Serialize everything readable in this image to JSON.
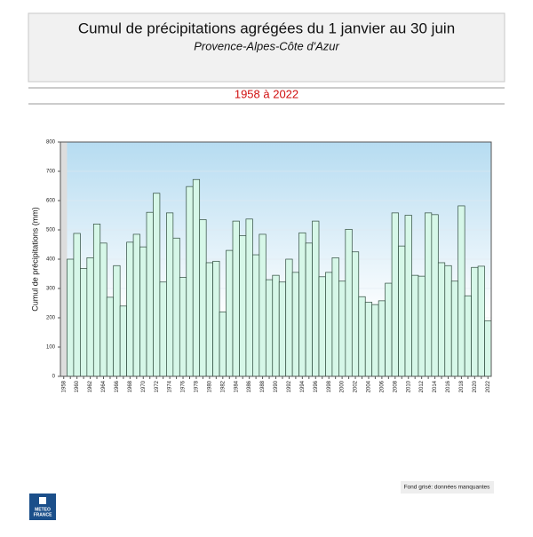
{
  "chart_data": {
    "type": "bar",
    "title": "Cumul de précipitations agrégées du 1 janvier au 30 juin",
    "subtitle": "Provence-Alpes-Côte d'Azur",
    "period": "1958 à 2022",
    "y_label": "Cumul de précipitations (mm)",
    "note": "Fond grisé: données manquantes",
    "logo": [
      "METEO",
      "FRANCE"
    ],
    "categories": [
      "1958",
      null,
      "1960",
      null,
      "1962",
      null,
      "1964",
      null,
      "1966",
      null,
      "1968",
      null,
      "1970",
      null,
      "1972",
      null,
      "1974",
      null,
      "1976",
      null,
      "1978",
      null,
      "1980",
      null,
      "1982",
      null,
      "1984",
      null,
      "1986",
      null,
      "1988",
      null,
      "1990",
      null,
      "1992",
      null,
      "1994",
      null,
      "1996",
      null,
      "1998",
      null,
      "2000",
      null,
      "2002",
      null,
      "2004",
      null,
      "2006",
      null,
      "2008",
      null,
      "2010",
      null,
      "2012",
      null,
      "2014",
      null,
      "2016",
      null,
      "2018",
      null,
      "2020",
      null,
      "2022"
    ],
    "values": [
      null,
      400,
      488,
      368,
      405,
      520,
      455,
      270,
      378,
      240,
      458,
      485,
      442,
      560,
      625,
      322,
      558,
      472,
      338,
      648,
      672,
      535,
      388,
      393,
      220,
      430,
      530,
      480,
      537,
      415,
      485,
      330,
      345,
      322,
      400,
      355,
      490,
      455,
      530,
      340,
      355,
      405,
      325,
      502,
      425,
      272,
      253,
      245,
      258,
      318,
      558,
      445,
      550,
      345,
      342,
      558,
      552,
      388,
      378,
      325,
      582,
      275,
      372,
      376,
      190
    ],
    "color": "#d6f7e8",
    "edge_color": "#2e4a3c",
    "missing_color": "#dddddd",
    "ylim": [
      0,
      800
    ],
    "yticks": [
      0,
      100,
      200,
      300,
      400,
      500,
      600,
      700,
      800
    ],
    "grid": true
  }
}
